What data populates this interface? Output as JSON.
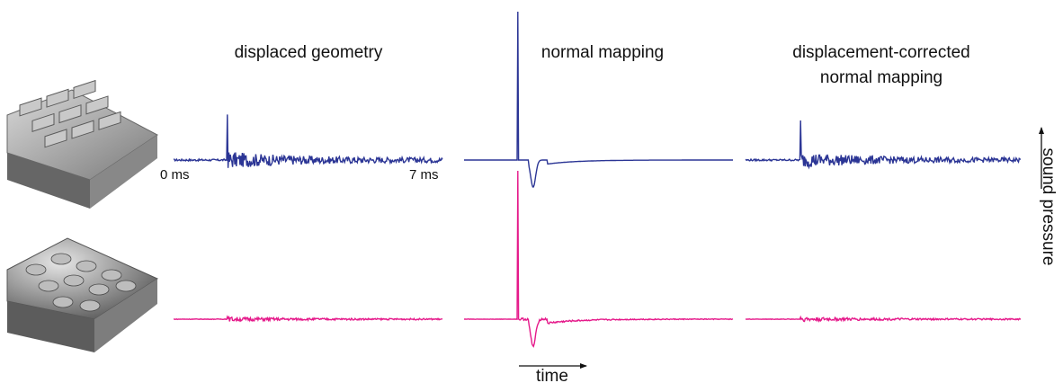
{
  "chart_data": {
    "type": "line",
    "titles": [
      "displaced geometry",
      "normal mapping",
      "displacement-corrected",
      "normal mapping"
    ],
    "time_start_label": "0 ms",
    "time_end_label": "7 ms",
    "time_axis_label": "time",
    "pressure_axis_label": "sound pressure",
    "x_range_ms": [
      0,
      7
    ],
    "rows": [
      {
        "surface": "brick-like surface",
        "color": "#2b3595"
      },
      {
        "surface": "bumpy wavy surface",
        "color": "#e5198a"
      }
    ],
    "panels": [
      {
        "column": "displaced geometry",
        "row": 1,
        "spike_time_ms": 1.4,
        "spike_height": 0.92,
        "dip": 0,
        "noise_amplitude": 0.13
      },
      {
        "column": "normal mapping",
        "row": 1,
        "spike_time_ms": 1.4,
        "spike_height": 3.0,
        "dip": 0.55,
        "noise_amplitude": 0.0
      },
      {
        "column": "displacement-corrected normal mapping",
        "row": 1,
        "spike_time_ms": 1.4,
        "spike_height": 0.8,
        "dip": 0,
        "noise_amplitude": 0.12
      },
      {
        "column": "displaced geometry",
        "row": 2,
        "spike_time_ms": 1.4,
        "spike_height": 0.05,
        "dip": 0,
        "noise_amplitude": 0.035
      },
      {
        "column": "normal mapping",
        "row": 2,
        "spike_time_ms": 1.4,
        "spike_height": 3.0,
        "dip": 0.55,
        "noise_amplitude": 0.02
      },
      {
        "column": "displacement-corrected normal mapping",
        "row": 2,
        "spike_time_ms": 1.4,
        "spike_height": 0.04,
        "dip": 0,
        "noise_amplitude": 0.035
      }
    ]
  }
}
